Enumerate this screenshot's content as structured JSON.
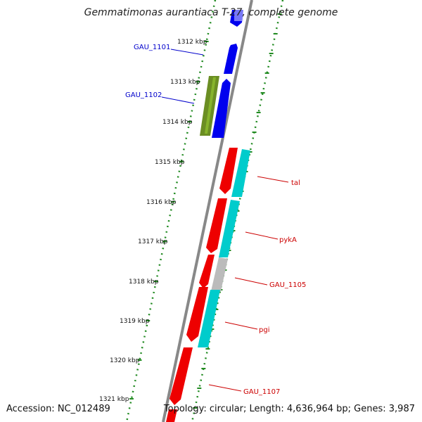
{
  "title": "Gemmatimonas aurantiaca T-27, complete genome",
  "accession_text": "Accession: NC_012489",
  "info_text": "Topology: circular; Length: 4,636,964 bp; Genes: 3,987",
  "ticks": [
    "1312 kbp",
    "1313 kbp",
    "1314 kbp",
    "1315 kbp",
    "1316 kbp",
    "1317 kbp",
    "1318 kbp",
    "1319 kbp",
    "1320 kbp",
    "1321 kbp"
  ],
  "gene_labels": [
    {
      "text": "GAU_1101",
      "color": "#0000cc"
    },
    {
      "text": "GAU_1102",
      "color": "#0000cc"
    },
    {
      "text": "tal",
      "color": "#cc0000"
    },
    {
      "text": "pykA",
      "color": "#cc0000"
    },
    {
      "text": "GAU_1105",
      "color": "#cc0000"
    },
    {
      "text": "pgi",
      "color": "#cc0000"
    },
    {
      "text": "GAU_1107",
      "color": "#cc0000"
    }
  ],
  "colors": {
    "blue": "#0000ee",
    "olive": "#6b8e23",
    "red": "#ee0000",
    "cyan": "#00cccc",
    "gray": "#bbbbbb",
    "dots": "#228b22",
    "backbone": "#888888"
  }
}
